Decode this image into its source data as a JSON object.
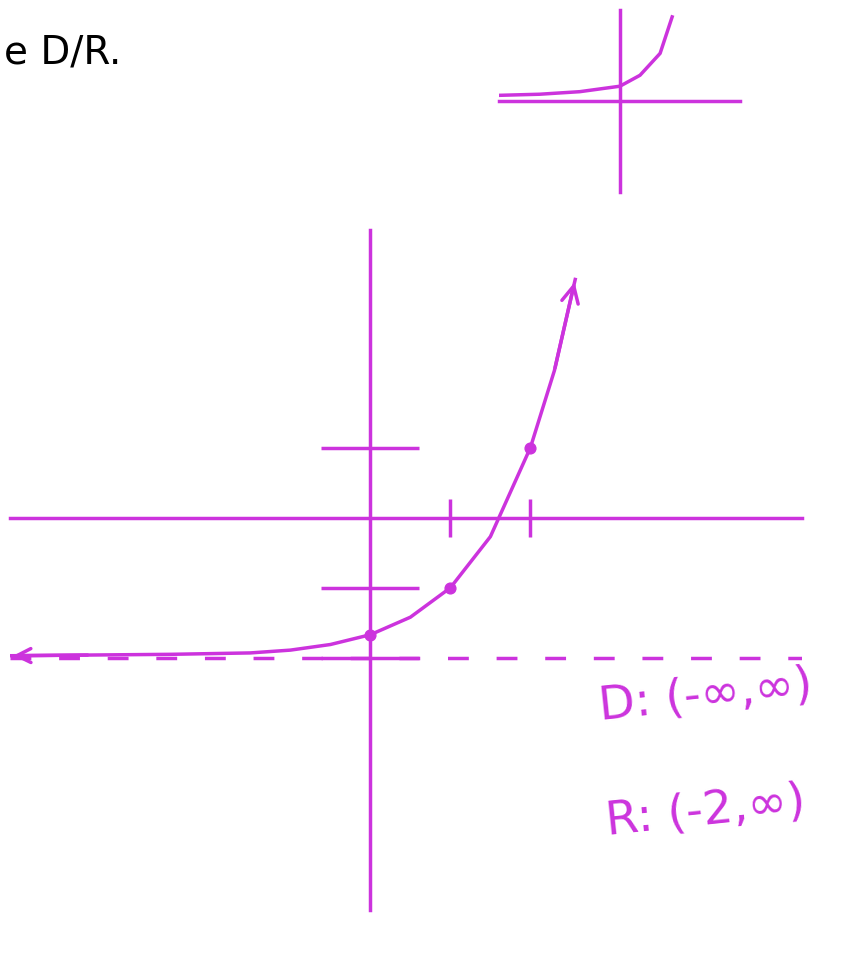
{
  "chart_data": [
    {
      "type": "line",
      "title": "e D/R.",
      "color": "#cc33dd",
      "marker": "arrow",
      "x": [
        -4.5,
        -3.5,
        -2.5,
        -1.5,
        -1,
        -0.5,
        0,
        0.5,
        1,
        1.5,
        2,
        2.3,
        2.56
      ],
      "values": [
        -1.97,
        -1.96,
        -1.95,
        -1.93,
        -1.89,
        -1.81,
        -1.67,
        -1.42,
        -1,
        -0.27,
        1,
        2.1,
        3.4
      ],
      "points": {
        "x": [
          0,
          1,
          2
        ],
        "values": [
          -1.67,
          -1,
          1
        ]
      },
      "asymptote": -2,
      "xlim": [
        -4.5,
        5.4
      ],
      "ylim": [
        -5.6,
        4.1
      ],
      "xticks": [
        1,
        2
      ],
      "yticks": [
        -2,
        -1,
        1
      ],
      "tick_labels": false,
      "grid": false,
      "annotations": [
        "D: (-∞,∞)",
        "R: (-2,∞)"
      ]
    },
    {
      "type": "line",
      "color": "#cc33dd",
      "x": [
        -3,
        -2,
        -1,
        0,
        0.5,
        1,
        1.3
      ],
      "values": [
        0.15,
        0.18,
        0.25,
        0.4,
        0.7,
        1.3,
        2.3
      ],
      "xlim": [
        -3,
        3
      ],
      "ylim": [
        -2.5,
        2.5
      ],
      "xticks": [],
      "yticks": [],
      "tick_labels": false,
      "grid": false
    }
  ]
}
